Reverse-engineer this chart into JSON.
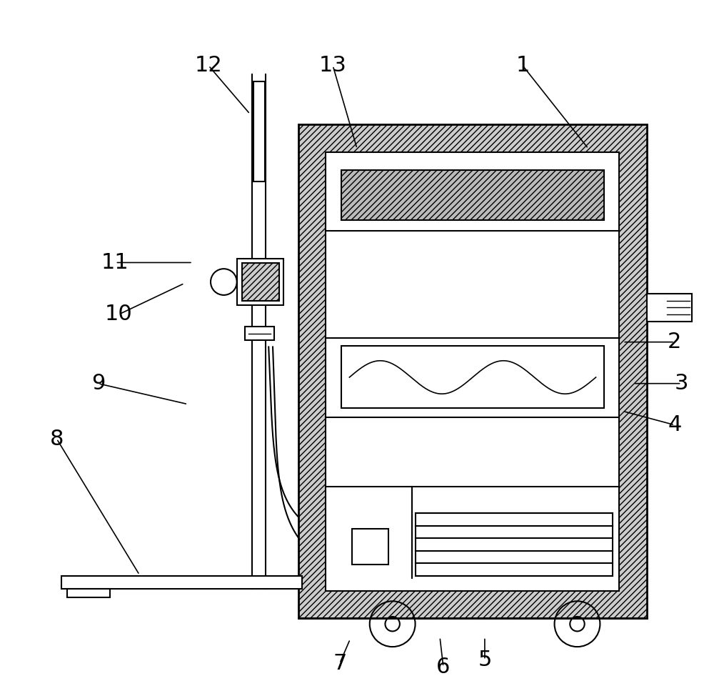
{
  "bg_color": "#ffffff",
  "line_color": "#000000",
  "label_fontsize": 22,
  "figsize": [
    10.0,
    9.67
  ],
  "dpi": 100,
  "labels_pos": {
    "1": [
      0.74,
      0.905,
      0.835,
      0.785
    ],
    "2": [
      0.96,
      0.505,
      0.885,
      0.505
    ],
    "3": [
      0.97,
      0.445,
      0.9,
      0.445
    ],
    "4": [
      0.96,
      0.385,
      0.885,
      0.405
    ],
    "5": [
      0.685,
      0.045,
      0.685,
      0.078
    ],
    "6": [
      0.625,
      0.035,
      0.62,
      0.078
    ],
    "7": [
      0.475,
      0.04,
      0.49,
      0.075
    ],
    "8": [
      0.065,
      0.365,
      0.185,
      0.168
    ],
    "9": [
      0.125,
      0.445,
      0.255,
      0.415
    ],
    "10": [
      0.155,
      0.545,
      0.25,
      0.59
    ],
    "11": [
      0.15,
      0.62,
      0.262,
      0.62
    ],
    "12": [
      0.285,
      0.905,
      0.345,
      0.835
    ],
    "13": [
      0.465,
      0.905,
      0.5,
      0.785
    ]
  }
}
